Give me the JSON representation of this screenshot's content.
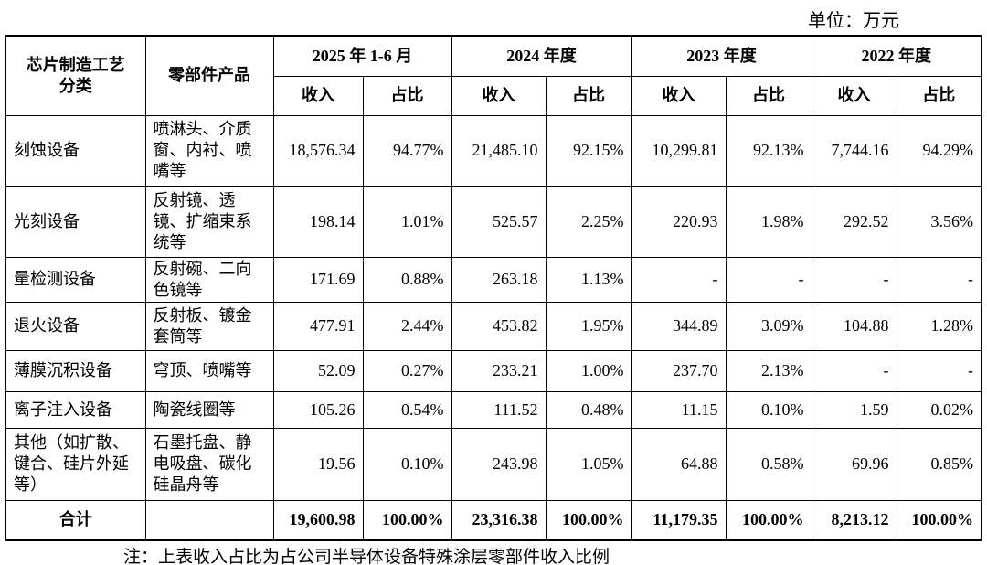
{
  "unit": "单位：万元",
  "header": {
    "process": "芯片制造工艺分类",
    "product": "零部件产品",
    "periods": [
      "2025 年 1-6 月",
      "2024 年度",
      "2023 年度",
      "2022 年度"
    ],
    "revenue": "收入",
    "share": "占比"
  },
  "rows": [
    {
      "process": [
        "刻蚀设备"
      ],
      "product": [
        "喷淋头、介质",
        "窗、内衬、喷",
        "嘴等"
      ],
      "values": [
        "18,576.34",
        "94.77%",
        "21,485.10",
        "92.15%",
        "10,299.81",
        "92.13%",
        "7,744.16",
        "94.29%"
      ]
    },
    {
      "process": [
        "光刻设备"
      ],
      "product": [
        "反射镜、透",
        "镜、扩缩束系",
        "统等"
      ],
      "values": [
        "198.14",
        "1.01%",
        "525.57",
        "2.25%",
        "220.93",
        "1.98%",
        "292.52",
        "3.56%"
      ]
    },
    {
      "process": [
        "量检测设备"
      ],
      "product": [
        "反射碗、二向",
        "色镜等"
      ],
      "values": [
        "171.69",
        "0.88%",
        "263.18",
        "1.13%",
        "-",
        "-",
        "-",
        "-"
      ]
    },
    {
      "process": [
        "退火设备"
      ],
      "product": [
        "反射板、镀金",
        "套筒等"
      ],
      "values": [
        "477.91",
        "2.44%",
        "453.82",
        "1.95%",
        "344.89",
        "3.09%",
        "104.88",
        "1.28%"
      ]
    },
    {
      "process": [
        "薄膜沉积设备"
      ],
      "product": [
        "穹顶、喷嘴等"
      ],
      "values": [
        "52.09",
        "0.27%",
        "233.21",
        "1.00%",
        "237.70",
        "2.13%",
        "-",
        "-"
      ]
    },
    {
      "process": [
        "离子注入设备"
      ],
      "product": [
        "陶瓷线圈等"
      ],
      "values": [
        "105.26",
        "0.54%",
        "111.52",
        "0.48%",
        "11.15",
        "0.10%",
        "1.59",
        "0.02%"
      ]
    },
    {
      "process": [
        "其他（如扩散、",
        "键合、硅片外延",
        "等）"
      ],
      "product": [
        "石墨托盘、静",
        "电吸盘、碳化",
        "硅晶舟等"
      ],
      "values": [
        "19.56",
        "0.10%",
        "243.98",
        "1.05%",
        "64.88",
        "0.58%",
        "69.96",
        "0.85%"
      ]
    }
  ],
  "total": {
    "label": "合计",
    "values": [
      "19,600.98",
      "100.00%",
      "23,316.38",
      "100.00%",
      "11,179.35",
      "100.00%",
      "8,213.12",
      "100.00%"
    ]
  },
  "note": "注：上表收入占比为占公司半导体设备特殊涂层零部件收入比例"
}
